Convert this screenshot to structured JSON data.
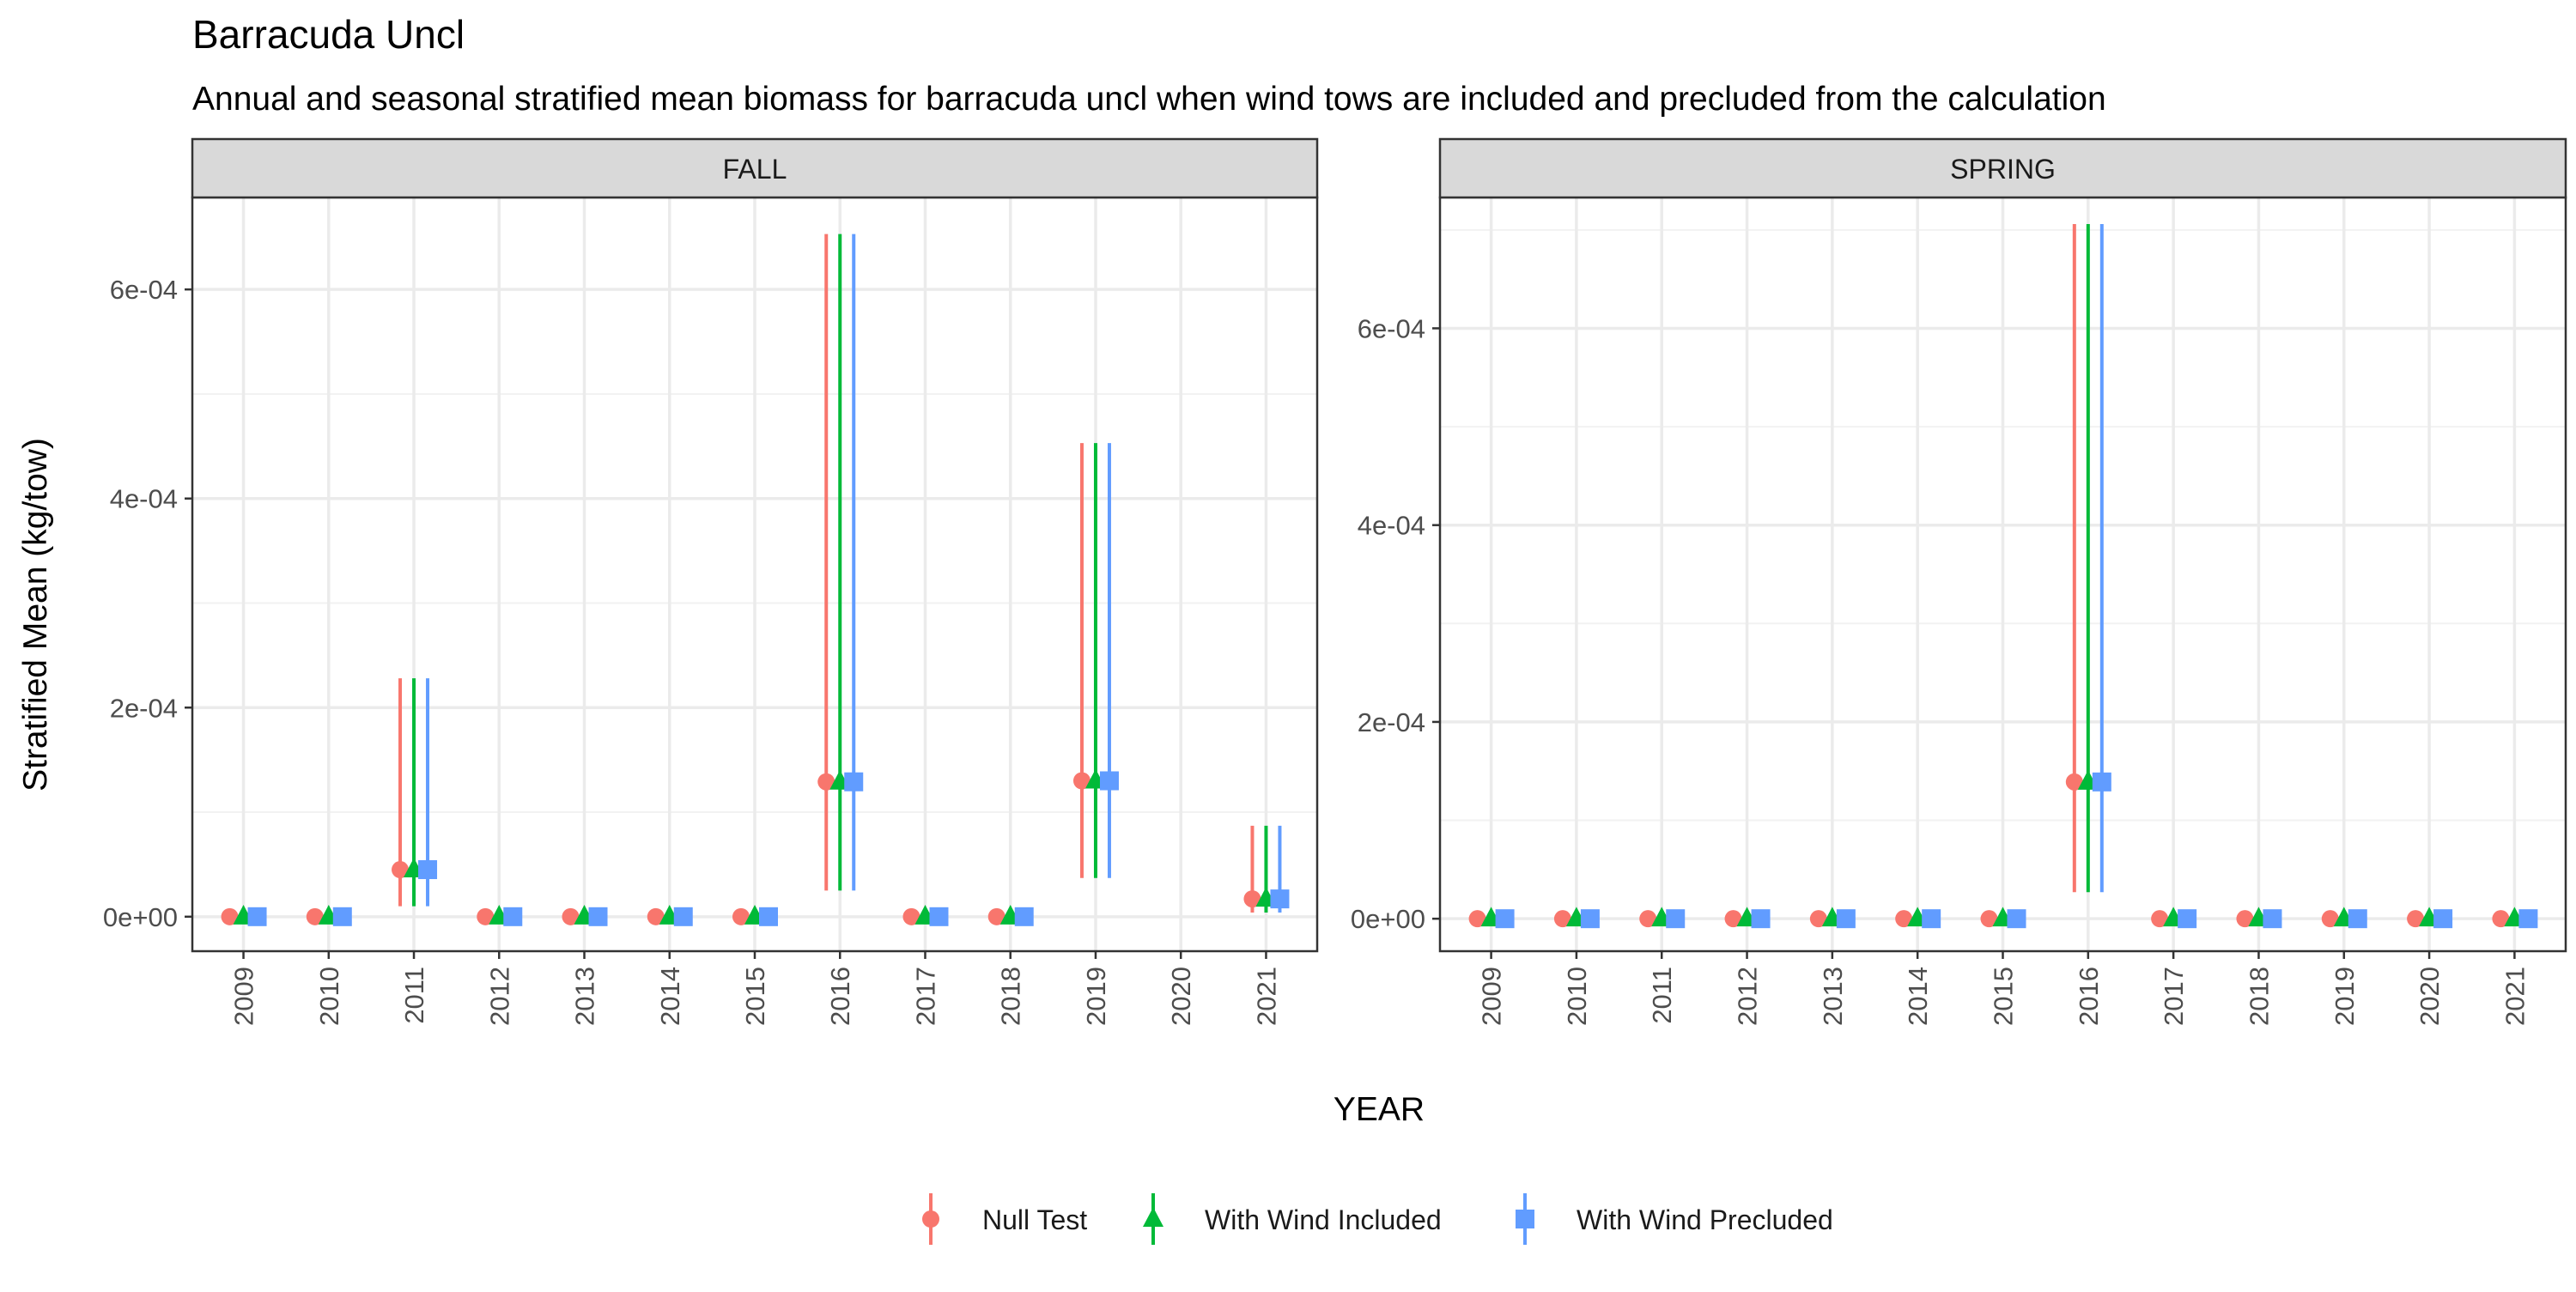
{
  "title": "Barracuda Uncl",
  "subtitle": "Annual and seasonal stratified mean biomass for barracuda uncl when wind tows are included and precluded from the calculation",
  "chart_data": {
    "type": "scatter",
    "title": "Barracuda Uncl",
    "subtitle": "Annual and seasonal stratified mean biomass for barracuda uncl when wind tows are included and precluded from the calculation",
    "xlabel": "YEAR",
    "ylabel": "Stratified Mean (kg/tow)",
    "grid": true,
    "legend_position": "bottom",
    "x_categories": [
      "2009",
      "2010",
      "2011",
      "2012",
      "2013",
      "2014",
      "2015",
      "2016",
      "2017",
      "2018",
      "2019",
      "2020",
      "2021"
    ],
    "series": [
      {
        "name": "Null Test",
        "color": "#F8766D",
        "shape": "circle"
      },
      {
        "name": "With Wind Included",
        "color": "#00BA38",
        "shape": "triangle"
      },
      {
        "name": "With Wind Precluded",
        "color": "#619CFF",
        "shape": "square"
      }
    ],
    "panels": [
      {
        "name": "FALL",
        "ylim": [
          -3.3e-05,
          0.000688
        ],
        "yticks": [
          0,
          0.0002,
          0.0004,
          0.0006
        ],
        "ytick_labels": [
          "0e+00",
          "2e-04",
          "4e-04",
          "6e-04"
        ],
        "points": [
          {
            "year": "2009",
            "values": [
              0,
              0,
              0
            ],
            "lower": [
              0,
              0,
              0
            ],
            "upper": [
              0,
              0,
              0
            ]
          },
          {
            "year": "2010",
            "values": [
              0,
              0,
              0
            ],
            "lower": [
              0,
              0,
              0
            ],
            "upper": [
              0,
              0,
              0
            ]
          },
          {
            "year": "2011",
            "values": [
              4.5e-05,
              4.5e-05,
              4.5e-05
            ],
            "lower": [
              1e-05,
              1e-05,
              1e-05
            ],
            "upper": [
              0.000228,
              0.000228,
              0.000228
            ]
          },
          {
            "year": "2012",
            "values": [
              0,
              0,
              0
            ],
            "lower": [
              0,
              0,
              0
            ],
            "upper": [
              0,
              0,
              0
            ]
          },
          {
            "year": "2013",
            "values": [
              0,
              0,
              0
            ],
            "lower": [
              0,
              0,
              0
            ],
            "upper": [
              0,
              0,
              0
            ]
          },
          {
            "year": "2014",
            "values": [
              0,
              0,
              0
            ],
            "lower": [
              0,
              0,
              0
            ],
            "upper": [
              0,
              0,
              0
            ]
          },
          {
            "year": "2015",
            "values": [
              0,
              0,
              0
            ],
            "lower": [
              0,
              0,
              0
            ],
            "upper": [
              0,
              0,
              0
            ]
          },
          {
            "year": "2016",
            "values": [
              0.000129,
              0.000129,
              0.000129
            ],
            "lower": [
              2.5e-05,
              2.5e-05,
              2.5e-05
            ],
            "upper": [
              0.000653,
              0.000653,
              0.000653
            ]
          },
          {
            "year": "2017",
            "values": [
              0,
              0,
              0
            ],
            "lower": [
              0,
              0,
              0
            ],
            "upper": [
              0,
              0,
              0
            ]
          },
          {
            "year": "2018",
            "values": [
              0,
              0,
              0
            ],
            "lower": [
              0,
              0,
              0
            ],
            "upper": [
              0,
              0,
              0
            ]
          },
          {
            "year": "2019",
            "values": [
              0.00013,
              0.00013,
              0.00013
            ],
            "lower": [
              3.7e-05,
              3.7e-05,
              3.7e-05
            ],
            "upper": [
              0.000453,
              0.000453,
              0.000453
            ]
          },
          {
            "year": "2021",
            "values": [
              1.7e-05,
              1.7e-05,
              1.7e-05
            ],
            "lower": [
              4e-06,
              4e-06,
              4e-06
            ],
            "upper": [
              8.7e-05,
              8.7e-05,
              8.7e-05
            ]
          }
        ]
      },
      {
        "name": "SPRING",
        "ylim": [
          -3.3e-05,
          0.000733
        ],
        "yticks": [
          0,
          0.0002,
          0.0004,
          0.0006
        ],
        "ytick_labels": [
          "0e+00",
          "2e-04",
          "4e-04",
          "6e-04"
        ],
        "points": [
          {
            "year": "2009",
            "values": [
              0,
              0,
              0
            ],
            "lower": [
              0,
              0,
              0
            ],
            "upper": [
              0,
              0,
              0
            ]
          },
          {
            "year": "2010",
            "values": [
              0,
              0,
              0
            ],
            "lower": [
              0,
              0,
              0
            ],
            "upper": [
              0,
              0,
              0
            ]
          },
          {
            "year": "2011",
            "values": [
              0,
              0,
              0
            ],
            "lower": [
              0,
              0,
              0
            ],
            "upper": [
              0,
              0,
              0
            ]
          },
          {
            "year": "2012",
            "values": [
              0,
              0,
              0
            ],
            "lower": [
              0,
              0,
              0
            ],
            "upper": [
              0,
              0,
              0
            ]
          },
          {
            "year": "2013",
            "values": [
              0,
              0,
              0
            ],
            "lower": [
              0,
              0,
              0
            ],
            "upper": [
              0,
              0,
              0
            ]
          },
          {
            "year": "2014",
            "values": [
              0,
              0,
              0
            ],
            "lower": [
              0,
              0,
              0
            ],
            "upper": [
              0,
              0,
              0
            ]
          },
          {
            "year": "2015",
            "values": [
              0,
              0,
              0
            ],
            "lower": [
              0,
              0,
              0
            ],
            "upper": [
              0,
              0,
              0
            ]
          },
          {
            "year": "2016",
            "values": [
              0.000139,
              0.000139,
              0.000139
            ],
            "lower": [
              2.7e-05,
              2.7e-05,
              2.7e-05
            ],
            "upper": [
              0.000706,
              0.000706,
              0.000706
            ]
          },
          {
            "year": "2017",
            "values": [
              0,
              0,
              0
            ],
            "lower": [
              0,
              0,
              0
            ],
            "upper": [
              0,
              0,
              0
            ]
          },
          {
            "year": "2018",
            "values": [
              0,
              0,
              0
            ],
            "lower": [
              0,
              0,
              0
            ],
            "upper": [
              0,
              0,
              0
            ]
          },
          {
            "year": "2019",
            "values": [
              0,
              0,
              0
            ],
            "lower": [
              0,
              0,
              0
            ],
            "upper": [
              0,
              0,
              0
            ]
          },
          {
            "year": "2020",
            "values": [
              0,
              0,
              0
            ],
            "lower": [
              0,
              0,
              0
            ],
            "upper": [
              0,
              0,
              0
            ]
          },
          {
            "year": "2021",
            "values": [
              0,
              0,
              0
            ],
            "lower": [
              0,
              0,
              0
            ],
            "upper": [
              0,
              0,
              0
            ]
          }
        ]
      }
    ]
  }
}
